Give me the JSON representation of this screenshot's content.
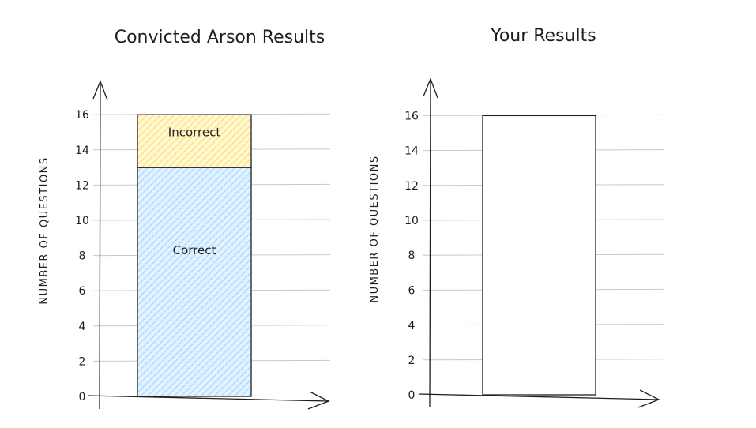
{
  "chart_data": [
    {
      "type": "bar",
      "stacked": true,
      "title": "Convicted Arson Results",
      "ylabel": "NUMBER OF QUESTIONS",
      "yticks": [
        0,
        2,
        4,
        6,
        8,
        10,
        12,
        14,
        16
      ],
      "ylim": [
        0,
        16
      ],
      "grid": true,
      "segments": [
        {
          "label": "Correct",
          "value": 13,
          "color": "#a5d8ff"
        },
        {
          "label": "Incorrect",
          "value": 3,
          "color": "#ffec99"
        }
      ]
    },
    {
      "type": "bar",
      "stacked": true,
      "title": "Your Results",
      "ylabel": "NUMBER OF QUESTIONS",
      "yticks": [
        0,
        2,
        4,
        6,
        8,
        10,
        12,
        14,
        16
      ],
      "ylim": [
        0,
        16
      ],
      "grid": true,
      "segments": [
        {
          "label": "",
          "value": 16,
          "color": "#ffffff"
        }
      ]
    }
  ]
}
